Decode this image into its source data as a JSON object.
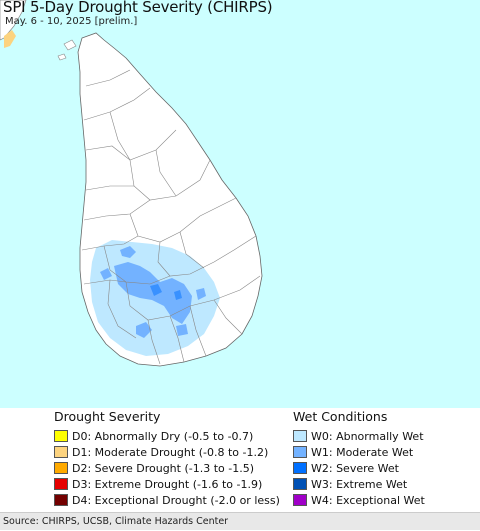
{
  "header": {
    "title": "SPI 5-Day Drought Severity (CHIRPS)",
    "subtitle": "May. 6 - 10, 2025 [prelim.]"
  },
  "map": {
    "ocean_color": "#ccffff",
    "land_color": "#ffffff",
    "boundary_color": "#888888"
  },
  "legend_drought": {
    "heading": "Drought Severity",
    "items": [
      {
        "label": "D0: Abnormally Dry (-0.5 to -0.7)",
        "color": "#ffff00"
      },
      {
        "label": "D1: Moderate Drought (-0.8 to -1.2)",
        "color": "#fcd37f"
      },
      {
        "label": "D2: Severe Drought (-1.3 to -1.5)",
        "color": "#ffaa00"
      },
      {
        "label": "D3: Extreme Drought (-1.6 to -1.9)",
        "color": "#e60000"
      },
      {
        "label": "D4: Exceptional Drought (-2.0 or less)",
        "color": "#730000"
      }
    ]
  },
  "legend_wet": {
    "heading": "Wet Conditions",
    "items": [
      {
        "label": "W0: Abnormally Wet",
        "color": "#bee8ff"
      },
      {
        "label": "W1: Moderate Wet",
        "color": "#73b2ff"
      },
      {
        "label": "W2: Severe Wet",
        "color": "#0070ff"
      },
      {
        "label": "W3: Extreme Wet",
        "color": "#0050b4"
      },
      {
        "label": "W4: Exceptional Wet",
        "color": "#a000c8"
      }
    ]
  },
  "footer": {
    "source": "Source: CHIRPS, UCSB, Climate Hazards Center"
  }
}
